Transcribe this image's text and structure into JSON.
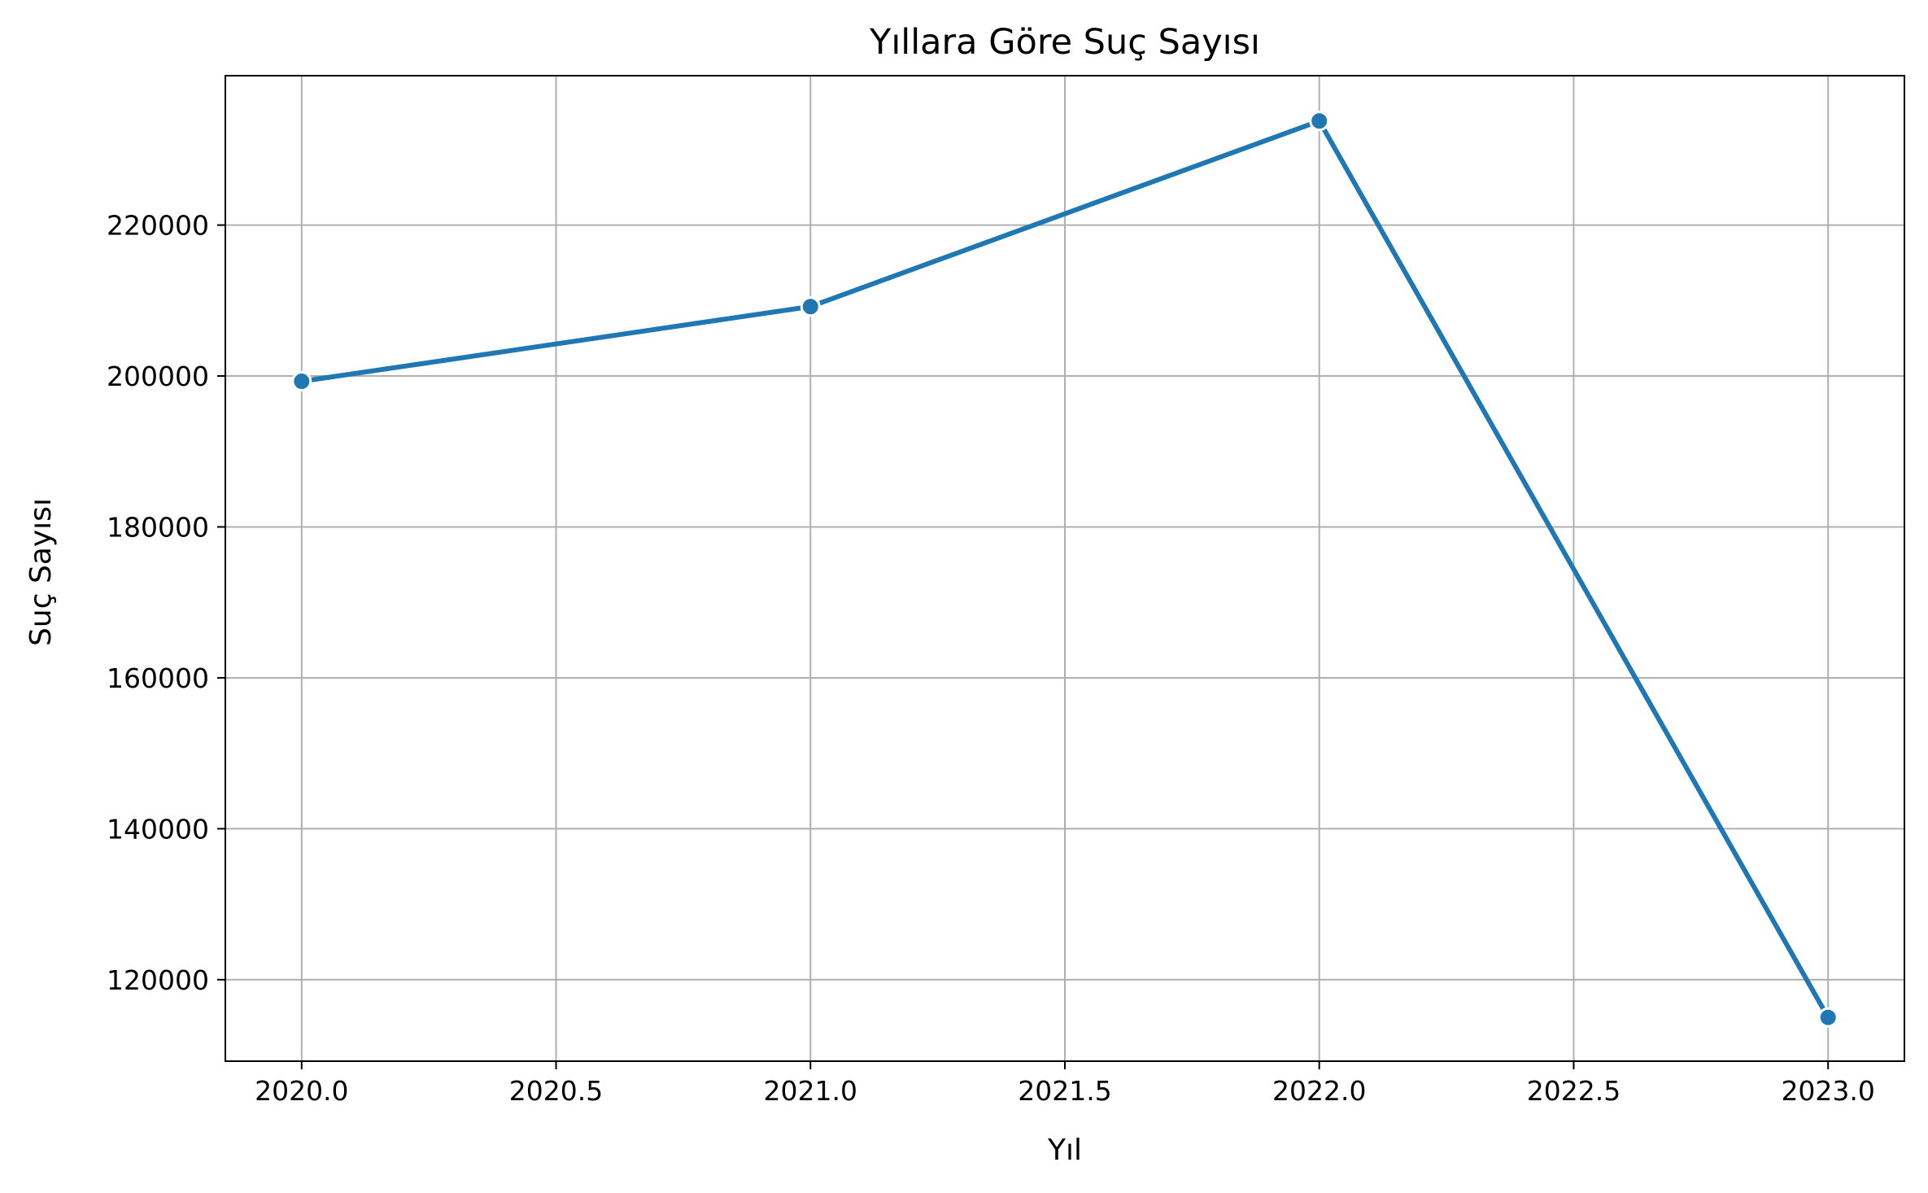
{
  "chart_data": {
    "type": "line",
    "title": "Yıllara Göre Suç Sayısı",
    "xlabel": "Yıl",
    "ylabel": "Suç Sayısı",
    "x": [
      2020,
      2021,
      2022,
      2023
    ],
    "series": [
      {
        "values": [
          199300,
          209200,
          233800,
          115000
        ],
        "color": "#1f77b4",
        "marker": "circle"
      }
    ],
    "xlim": [
      2019.85,
      2023.15
    ],
    "ylim": [
      109200,
      239800
    ],
    "x_ticks": [
      2020.0,
      2020.5,
      2021.0,
      2021.5,
      2022.0,
      2022.5,
      2023.0
    ],
    "x_tick_labels": [
      "2020.0",
      "2020.5",
      "2021.0",
      "2021.5",
      "2022.0",
      "2022.5",
      "2023.0"
    ],
    "y_ticks": [
      120000,
      140000,
      160000,
      180000,
      200000,
      220000
    ],
    "y_tick_labels": [
      "120000",
      "140000",
      "160000",
      "180000",
      "200000",
      "220000"
    ],
    "grid": true,
    "grid_color": "#b0b0b0",
    "axes_color": "#000000"
  }
}
